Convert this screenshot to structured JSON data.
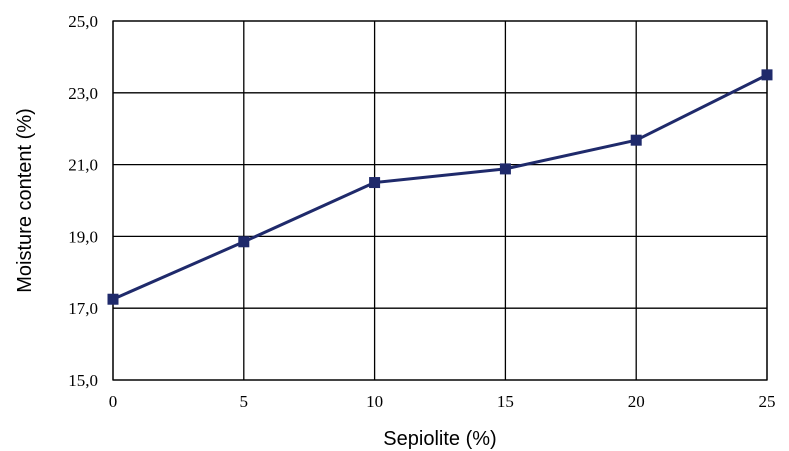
{
  "chart_data": {
    "type": "line",
    "xlabel": "Sepiolite (%)",
    "ylabel": "Moisture content (%)",
    "x": [
      0,
      5,
      10,
      15,
      20,
      25
    ],
    "x_tick_labels": [
      "0",
      "5",
      "10",
      "15",
      "20",
      "25"
    ],
    "y_tick_labels": [
      "15,0",
      "17,0",
      "19,0",
      "21,0",
      "23,0",
      "25,0"
    ],
    "y_ticks": [
      15,
      17,
      19,
      21,
      23,
      25
    ],
    "xlim": [
      0,
      25
    ],
    "ylim": [
      15,
      25
    ],
    "grid": true,
    "series": [
      {
        "values": [
          17.25,
          18.85,
          20.5,
          20.88,
          21.68,
          23.5
        ],
        "color": "#1f2a6b",
        "marker": "square"
      }
    ]
  }
}
